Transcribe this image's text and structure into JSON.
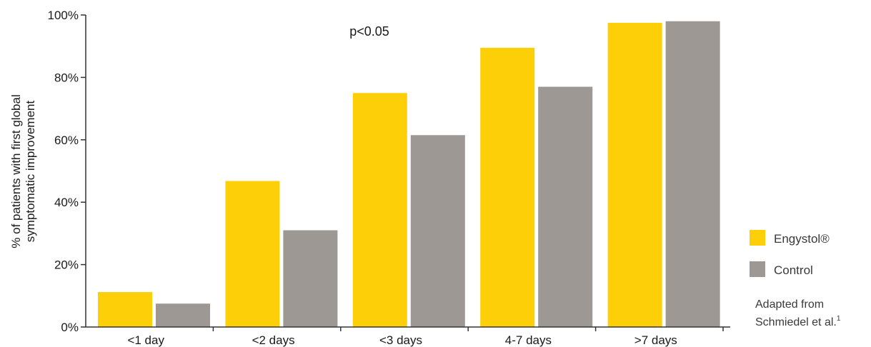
{
  "chart_data": {
    "type": "bar",
    "categories": [
      "<1 day",
      "<2 days",
      "<3 days",
      "4-7 days",
      ">7 days"
    ],
    "series": [
      {
        "name": "Engystol®",
        "color": "#fccf08",
        "values": [
          11.2,
          46.8,
          75.0,
          89.5,
          97.5
        ]
      },
      {
        "name": "Control",
        "color": "#9d9894",
        "values": [
          7.5,
          31.0,
          61.5,
          77.0,
          98.0
        ]
      }
    ],
    "ylabel_line1": "% of patients with first global",
    "ylabel_line2": "symptomatic improvement",
    "ylim": [
      0,
      100
    ],
    "yticks": [
      "0%",
      "20%",
      "40%",
      "60%",
      "80%",
      "100%"
    ],
    "ytick_values": [
      0,
      20,
      40,
      60,
      80,
      100
    ],
    "annotation": "p<0.05",
    "grid": false,
    "legend_position": "right"
  },
  "source_line1": "Adapted from",
  "source_line2": "Schmiedel et al.",
  "source_ref": "1"
}
